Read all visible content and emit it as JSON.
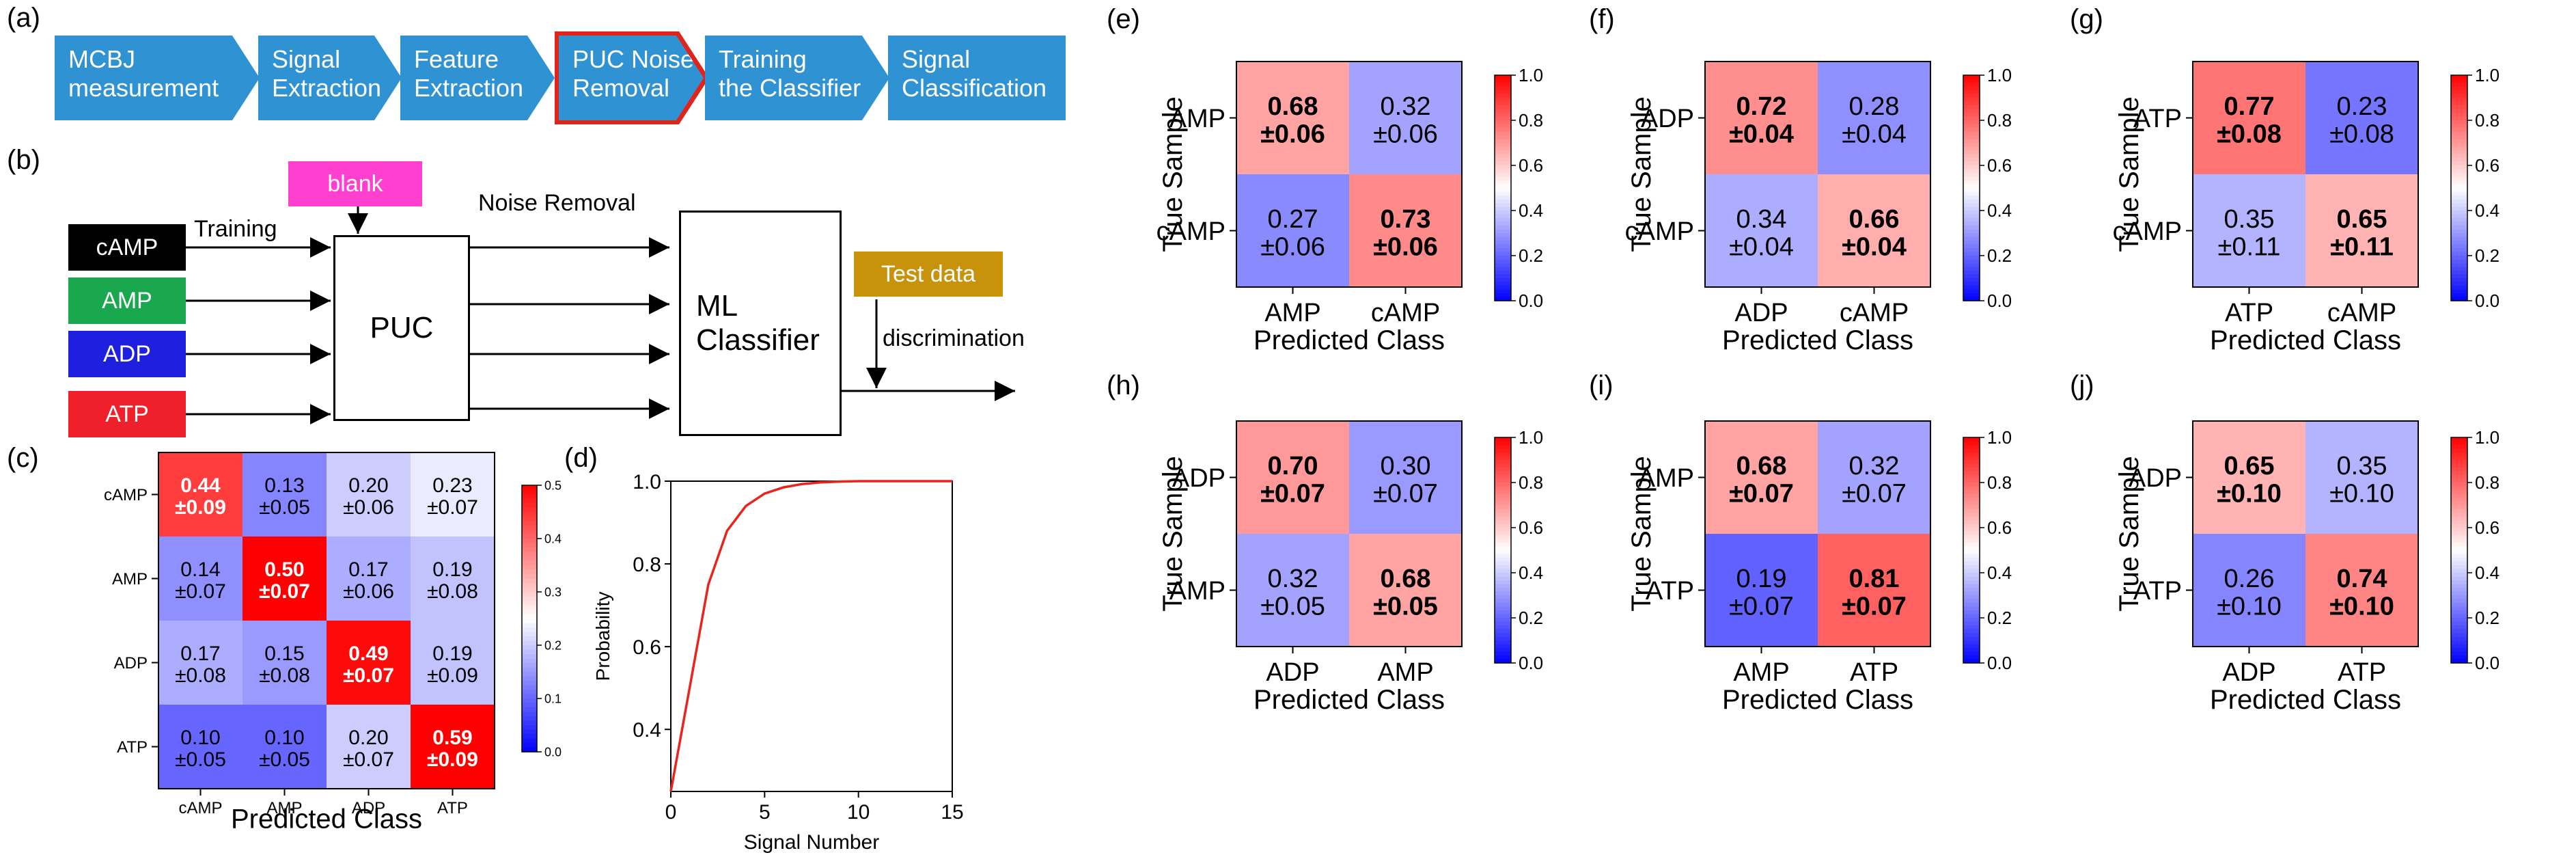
{
  "panel_labels": {
    "a": "(a)",
    "b": "(b)",
    "c": "(c)",
    "d": "(d)",
    "e": "(e)",
    "f": "(f)",
    "g": "(g)",
    "h": "(h)",
    "i": "(i)",
    "j": "(j)"
  },
  "pipeline": [
    {
      "line1": "MCBJ",
      "line2": "measurement"
    },
    {
      "line1": "Signal",
      "line2": "Extraction"
    },
    {
      "line1": "Feature",
      "line2": "Extraction"
    },
    {
      "line1": "PUC Noise",
      "line2": "Removal"
    },
    {
      "line1": "Training",
      "line2": "the Classifier"
    },
    {
      "line1": "Signal",
      "line2": "Classification"
    }
  ],
  "flow": {
    "inputs": [
      "cAMP",
      "AMP",
      "ADP",
      "ATP"
    ],
    "input_colors": [
      "#000000",
      "#1aa84f",
      "#1f1fe0",
      "#f0202a"
    ],
    "blank": "blank",
    "blank_color": "#ff3fcf",
    "training": "Training",
    "puc": "PUC",
    "noise_removal": "Noise Removal",
    "classifier_line1": "ML",
    "classifier_line2": "Classifier",
    "test_data": "Test data",
    "test_color": "#c8920a",
    "discrimination": "discrimination"
  },
  "chart_data": [
    {
      "id": "c",
      "type": "heatmap",
      "rows": [
        "cAMP",
        "AMP",
        "ADP",
        "ATP"
      ],
      "cols": [
        "cAMP",
        "AMP",
        "ADP",
        "ATP"
      ],
      "values": [
        [
          0.44,
          0.13,
          0.2,
          0.23
        ],
        [
          0.14,
          0.5,
          0.17,
          0.19
        ],
        [
          0.17,
          0.15,
          0.49,
          0.19
        ],
        [
          0.1,
          0.1,
          0.2,
          0.59
        ]
      ],
      "errors": [
        [
          0.09,
          0.05,
          0.06,
          0.07
        ],
        [
          0.07,
          0.07,
          0.06,
          0.08
        ],
        [
          0.08,
          0.08,
          0.07,
          0.09
        ],
        [
          0.05,
          0.05,
          0.07,
          0.09
        ]
      ],
      "xlabel": "Predicted Class",
      "ylabel": "",
      "clim": [
        0,
        0.5
      ],
      "cbar_ticks": [
        "0.0",
        "0.1",
        "0.2",
        "0.3",
        "0.4",
        "0.5"
      ]
    },
    {
      "id": "d",
      "type": "line",
      "x": [
        0,
        1,
        2,
        3,
        4,
        5,
        6,
        7,
        8,
        9,
        10,
        11,
        12,
        13,
        14,
        15
      ],
      "y": [
        0.25,
        0.5,
        0.75,
        0.88,
        0.94,
        0.97,
        0.985,
        0.993,
        0.997,
        0.999,
        1.0,
        1.0,
        1.0,
        1.0,
        1.0,
        1.0
      ],
      "xlabel": "Signal Number",
      "ylabel": "Probability",
      "xlim": [
        0,
        15
      ],
      "ylim": [
        0.25,
        1.0
      ],
      "xticks": [
        "0",
        "5",
        "10",
        "15"
      ],
      "yticks": [
        "0.4",
        "0.6",
        "0.8",
        "1.0"
      ]
    },
    {
      "id": "e",
      "type": "heatmap",
      "rows": [
        "AMP",
        "cAMP"
      ],
      "cols": [
        "AMP",
        "cAMP"
      ],
      "values": [
        [
          0.68,
          0.32
        ],
        [
          0.27,
          0.73
        ]
      ],
      "errors": [
        [
          0.06,
          0.06
        ],
        [
          0.06,
          0.06
        ]
      ],
      "xlabel": "Predicted Class",
      "ylabel": "True Sample",
      "clim": [
        0,
        1
      ],
      "cbar_ticks": [
        "0.0",
        "0.2",
        "0.4",
        "0.6",
        "0.8",
        "1.0"
      ]
    },
    {
      "id": "f",
      "type": "heatmap",
      "rows": [
        "ADP",
        "cAMP"
      ],
      "cols": [
        "ADP",
        "cAMP"
      ],
      "values": [
        [
          0.72,
          0.28
        ],
        [
          0.34,
          0.66
        ]
      ],
      "errors": [
        [
          0.04,
          0.04
        ],
        [
          0.04,
          0.04
        ]
      ],
      "xlabel": "Predicted Class",
      "ylabel": "True Sample",
      "clim": [
        0,
        1
      ],
      "cbar_ticks": [
        "0.0",
        "0.2",
        "0.4",
        "0.6",
        "0.8",
        "1.0"
      ]
    },
    {
      "id": "g",
      "type": "heatmap",
      "rows": [
        "ATP",
        "cAMP"
      ],
      "cols": [
        "ATP",
        "cAMP"
      ],
      "values": [
        [
          0.77,
          0.23
        ],
        [
          0.35,
          0.65
        ]
      ],
      "errors": [
        [
          0.08,
          0.08
        ],
        [
          0.11,
          0.11
        ]
      ],
      "xlabel": "Predicted Class",
      "ylabel": "True Sample",
      "clim": [
        0,
        1
      ],
      "cbar_ticks": [
        "0.0",
        "0.2",
        "0.4",
        "0.6",
        "0.8",
        "1.0"
      ]
    },
    {
      "id": "h",
      "type": "heatmap",
      "rows": [
        "ADP",
        "AMP"
      ],
      "cols": [
        "ADP",
        "AMP"
      ],
      "values": [
        [
          0.7,
          0.3
        ],
        [
          0.32,
          0.68
        ]
      ],
      "errors": [
        [
          0.07,
          0.07
        ],
        [
          0.05,
          0.05
        ]
      ],
      "xlabel": "Predicted Class",
      "ylabel": "True Sample",
      "clim": [
        0,
        1
      ],
      "cbar_ticks": [
        "0.0",
        "0.2",
        "0.4",
        "0.6",
        "0.8",
        "1.0"
      ]
    },
    {
      "id": "i",
      "type": "heatmap",
      "rows": [
        "AMP",
        "ATP"
      ],
      "cols": [
        "AMP",
        "ATP"
      ],
      "values": [
        [
          0.68,
          0.32
        ],
        [
          0.19,
          0.81
        ]
      ],
      "errors": [
        [
          0.07,
          0.07
        ],
        [
          0.07,
          0.07
        ]
      ],
      "xlabel": "Predicted Class",
      "ylabel": "True Sample",
      "clim": [
        0,
        1
      ],
      "cbar_ticks": [
        "0.0",
        "0.2",
        "0.4",
        "0.6",
        "0.8",
        "1.0"
      ]
    },
    {
      "id": "j",
      "type": "heatmap",
      "rows": [
        "ADP",
        "ATP"
      ],
      "cols": [
        "ADP",
        "ATP"
      ],
      "values": [
        [
          0.65,
          0.35
        ],
        [
          0.26,
          0.74
        ]
      ],
      "errors": [
        [
          0.1,
          0.1
        ],
        [
          0.1,
          0.1
        ]
      ],
      "xlabel": "Predicted Class",
      "ylabel": "True Sample",
      "clim": [
        0,
        1
      ],
      "cbar_ticks": [
        "0.0",
        "0.2",
        "0.4",
        "0.6",
        "0.8",
        "1.0"
      ]
    }
  ]
}
